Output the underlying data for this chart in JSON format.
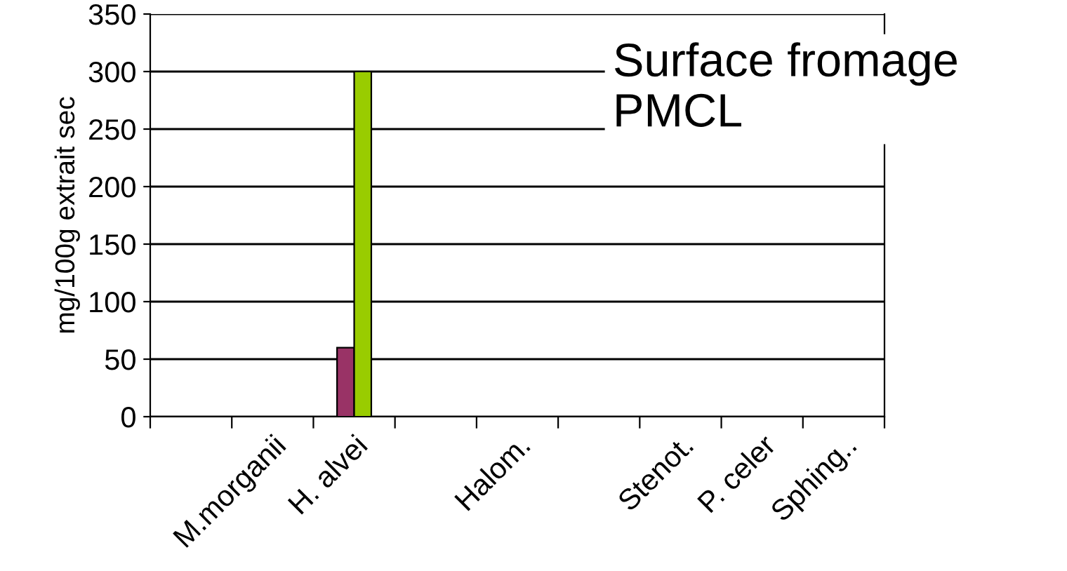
{
  "chart_data": {
    "type": "bar",
    "title": "Surface fromage\nPMCL",
    "ylabel": "mg/100g extrait sec",
    "categories": [
      null,
      "M.morganii",
      "H. alvei",
      null,
      "Halom.",
      null,
      "Stenot.",
      "P. celer",
      "Sphing.."
    ],
    "series": [
      {
        "color": "#993366",
        "values": [
          null,
          null,
          60,
          null,
          null,
          null,
          null,
          null,
          null
        ]
      },
      {
        "color": "#99cc00",
        "values": [
          null,
          null,
          300,
          null,
          null,
          null,
          null,
          null,
          null
        ]
      }
    ],
    "ylim": [
      0,
      350
    ],
    "yticks": [
      0,
      50,
      100,
      150,
      200,
      250,
      300,
      350
    ],
    "grid": "y",
    "legend": false
  }
}
